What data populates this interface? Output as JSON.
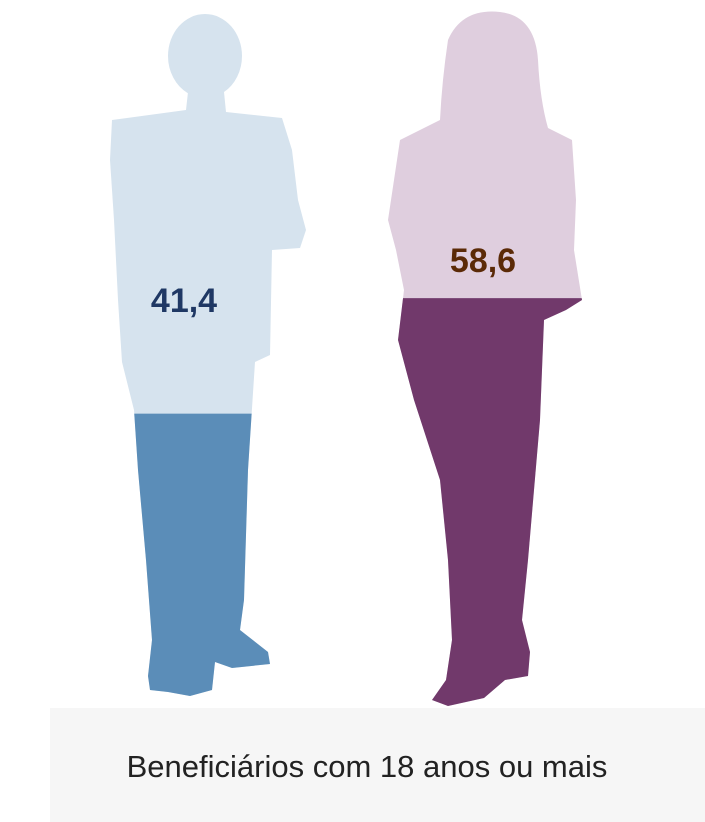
{
  "chart_data": {
    "type": "pictograph",
    "values": [
      41.4,
      58.6
    ],
    "value_labels": [
      "41,4",
      "58,6"
    ],
    "colors": [
      "#5b8db8",
      "#71396b"
    ],
    "background_colors": [
      "#d6e3ee",
      "#dfcede"
    ],
    "label_colors": [
      "#1f3864",
      "#5b2a07"
    ],
    "ylim": [
      0,
      100
    ],
    "xlabel": "Beneficiários com 18 anos ou mais"
  }
}
